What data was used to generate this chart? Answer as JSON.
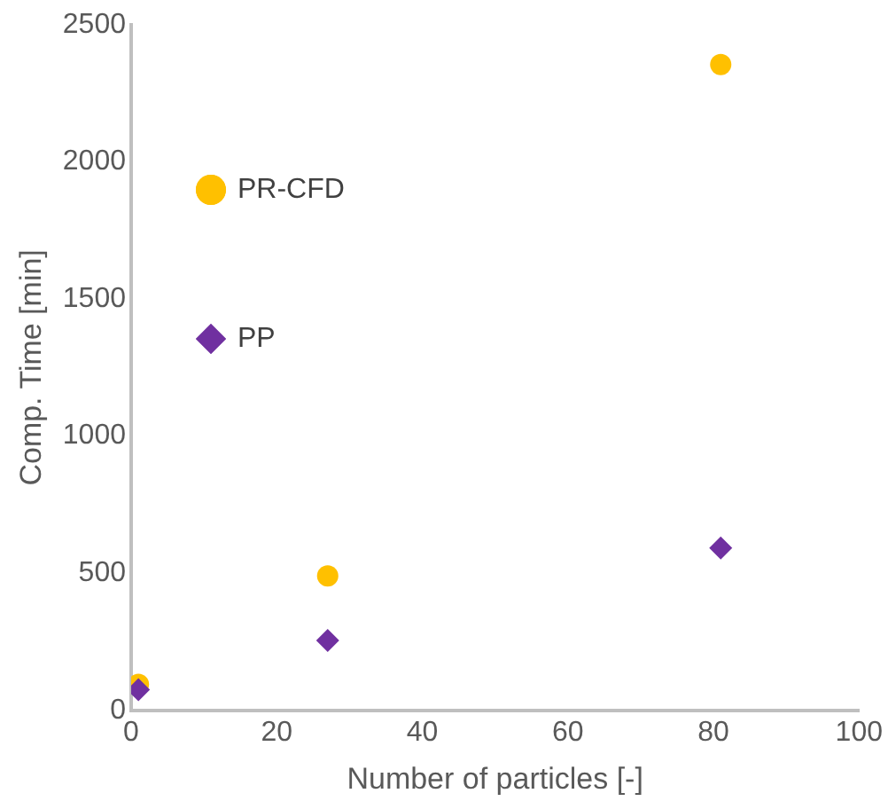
{
  "chart_data": {
    "type": "scatter",
    "xlabel": "Number of particles [-]",
    "ylabel": "Comp. Time [min]",
    "xlim": [
      0,
      100
    ],
    "xticks": [
      0,
      20,
      40,
      60,
      80,
      100
    ],
    "ylim": [
      0,
      2500
    ],
    "yticks": [
      0,
      500,
      1000,
      1500,
      2000,
      2500
    ],
    "grid": false,
    "legend": "top left",
    "series": [
      {
        "name": "PR-CFD",
        "color": "#ffc000",
        "marker": "circle",
        "x": [
          1,
          27,
          81
        ],
        "values": [
          95,
          490,
          2355
        ]
      },
      {
        "name": "PP",
        "color": "#7030a0",
        "marker": "diamond",
        "x": [
          1,
          27,
          81
        ],
        "values": [
          75,
          255,
          592
        ]
      }
    ]
  }
}
